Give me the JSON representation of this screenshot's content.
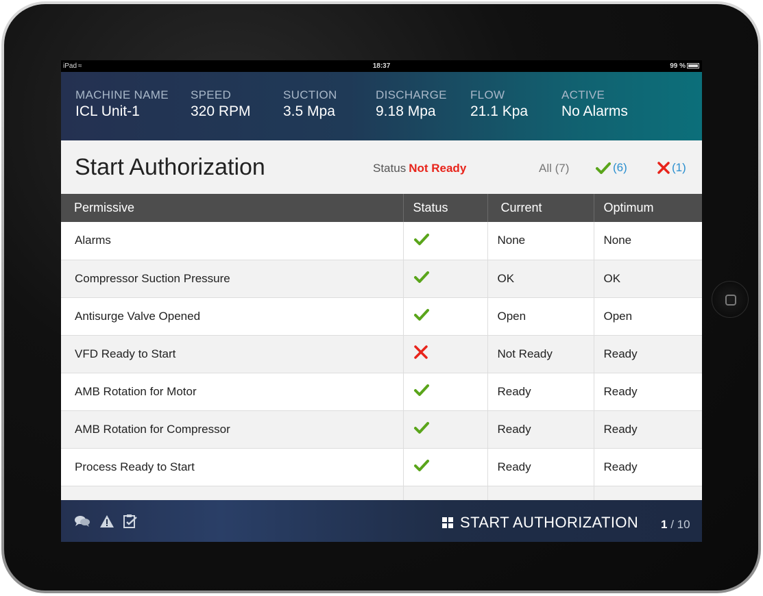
{
  "statusbar": {
    "device": "iPad",
    "time": "18:37",
    "battery": "99 %"
  },
  "header": {
    "metrics": [
      {
        "label": "MACHINE NAME",
        "value": "ICL Unit-1"
      },
      {
        "label": "SPEED",
        "value": "320 RPM"
      },
      {
        "label": "SUCTION",
        "value": "3.5 Mpa"
      },
      {
        "label": "DISCHARGE",
        "value": "9.18 Mpa"
      },
      {
        "label": "FLOW",
        "value": "21.1 Kpa"
      },
      {
        "label": "ACTIVE",
        "value": "No Alarms"
      }
    ]
  },
  "titlebar": {
    "title": "Start Authorization",
    "status_label": "Status",
    "status_value": "Not Ready",
    "filter_all": "All (7)",
    "filter_ok_count": "(6)",
    "filter_bad_count": "(1)"
  },
  "table": {
    "headers": [
      "Permissive",
      "Status",
      "Current",
      "Optimum"
    ],
    "rows": [
      {
        "permissive": "Alarms",
        "status": "ok",
        "current": "None",
        "optimum": "None"
      },
      {
        "permissive": "Compressor Suction Pressure",
        "status": "ok",
        "current": "OK",
        "optimum": "OK"
      },
      {
        "permissive": "Antisurge Valve Opened",
        "status": "ok",
        "current": "Open",
        "optimum": "Open"
      },
      {
        "permissive": "VFD Ready to Start",
        "status": "fail",
        "current": "Not Ready",
        "optimum": "Ready"
      },
      {
        "permissive": "AMB Rotation for Motor",
        "status": "ok",
        "current": "Ready",
        "optimum": "Ready"
      },
      {
        "permissive": "AMB Rotation for Compressor",
        "status": "ok",
        "current": "Ready",
        "optimum": "Ready"
      },
      {
        "permissive": "Process Ready to Start",
        "status": "ok",
        "current": "Ready",
        "optimum": "Ready"
      }
    ]
  },
  "footer": {
    "icons": [
      "chat-icon",
      "warning-icon",
      "checklist-icon"
    ],
    "action_label": "START AUTHORIZATION",
    "page_current": "1",
    "page_total": "/ 10"
  },
  "colors": {
    "ok": "#5aa51b",
    "fail": "#e8241b",
    "link": "#2a8fcf"
  }
}
